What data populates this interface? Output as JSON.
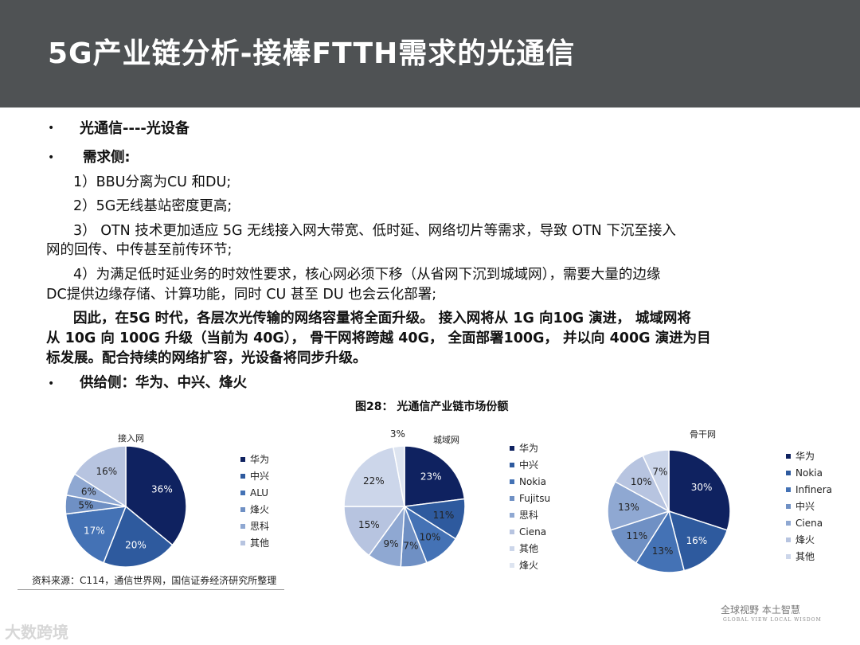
{
  "title": "5G产业链分析-接棒FTTH需求的光通信",
  "bullets": {
    "b1": "光通信----光设备",
    "b2": "需求侧:",
    "l1": "1）BBU分离为CU 和DU;",
    "l2": "2）5G无线基站密度更高;",
    "l3a": "3） OTN 技术更加适应 5G 无线接入网大带宽、低时延、网络切片等需求，导致 OTN 下沉至接入",
    "l3b": "网的回传、中传甚至前传环节;",
    "l4a": "4）为满足低时延业务的时效性要求，核心网必须下移（从省网下沉到城域网），需要大量的边缘",
    "l4b": "DC提供边缘存储、计算功能，同时 CU 甚至 DU 也会云化部署;",
    "c1": "因此，在5G 时代，各层次光传输的网络容量将全面升级。 接入网将从 1G 向10G 演进， 城域网将",
    "c2": "从 10G 向 100G 升级（当前为 40G）， 骨干网将跨越 40G， 全面部署100G， 并以向 400G 演进为目",
    "c3": "标发展。配合持续的网络扩容，光设备将同步升级。",
    "b3": "供给侧：华为、中兴、烽火"
  },
  "figure_title": "图28：  光通信产业链市场份额",
  "source": "资料来源：C114，通信世界网，国信证券经济研究所整理",
  "slogan": "全球视野  本土智慧",
  "slogan_en": "GLOBAL VIEW   LOCAL WISDOM",
  "watermark": "大数跨境",
  "colors": [
    "#0f2260",
    "#2e5a9e",
    "#4472b5",
    "#6f90c4",
    "#8fa8d2",
    "#b7c4e0",
    "#ccd6ea",
    "#dde4f0"
  ],
  "chart_data": [
    {
      "type": "pie",
      "title": "接入网",
      "labels": [
        "华为",
        "中兴",
        "ALU",
        "烽火",
        "思科",
        "其他"
      ],
      "values": [
        36,
        20,
        17,
        5,
        6,
        16
      ],
      "value_labels": [
        "36%",
        "20%",
        "17%",
        "5%",
        "6%",
        "16%"
      ],
      "legend_position": "right"
    },
    {
      "type": "pie",
      "title": "城域网",
      "labels": [
        "华为",
        "中兴",
        "Nokia",
        "Fujitsu",
        "思科",
        "Ciena",
        "其他",
        "烽火"
      ],
      "values": [
        23,
        11,
        10,
        7,
        9,
        15,
        22,
        3
      ],
      "value_labels": [
        "23%",
        "11%",
        "10%",
        "7%",
        "9%",
        "15%",
        "22%",
        "3%"
      ],
      "legend_position": "right"
    },
    {
      "type": "pie",
      "title": "骨干网",
      "labels": [
        "华为",
        "Nokia",
        "Infinera",
        "中兴",
        "Ciena",
        "烽火",
        "其他"
      ],
      "values": [
        30,
        16,
        13,
        11,
        13,
        10,
        7
      ],
      "value_labels": [
        "30%",
        "16%",
        "13%",
        "11%",
        "13%",
        "10%",
        "7%"
      ],
      "legend_position": "right"
    }
  ]
}
